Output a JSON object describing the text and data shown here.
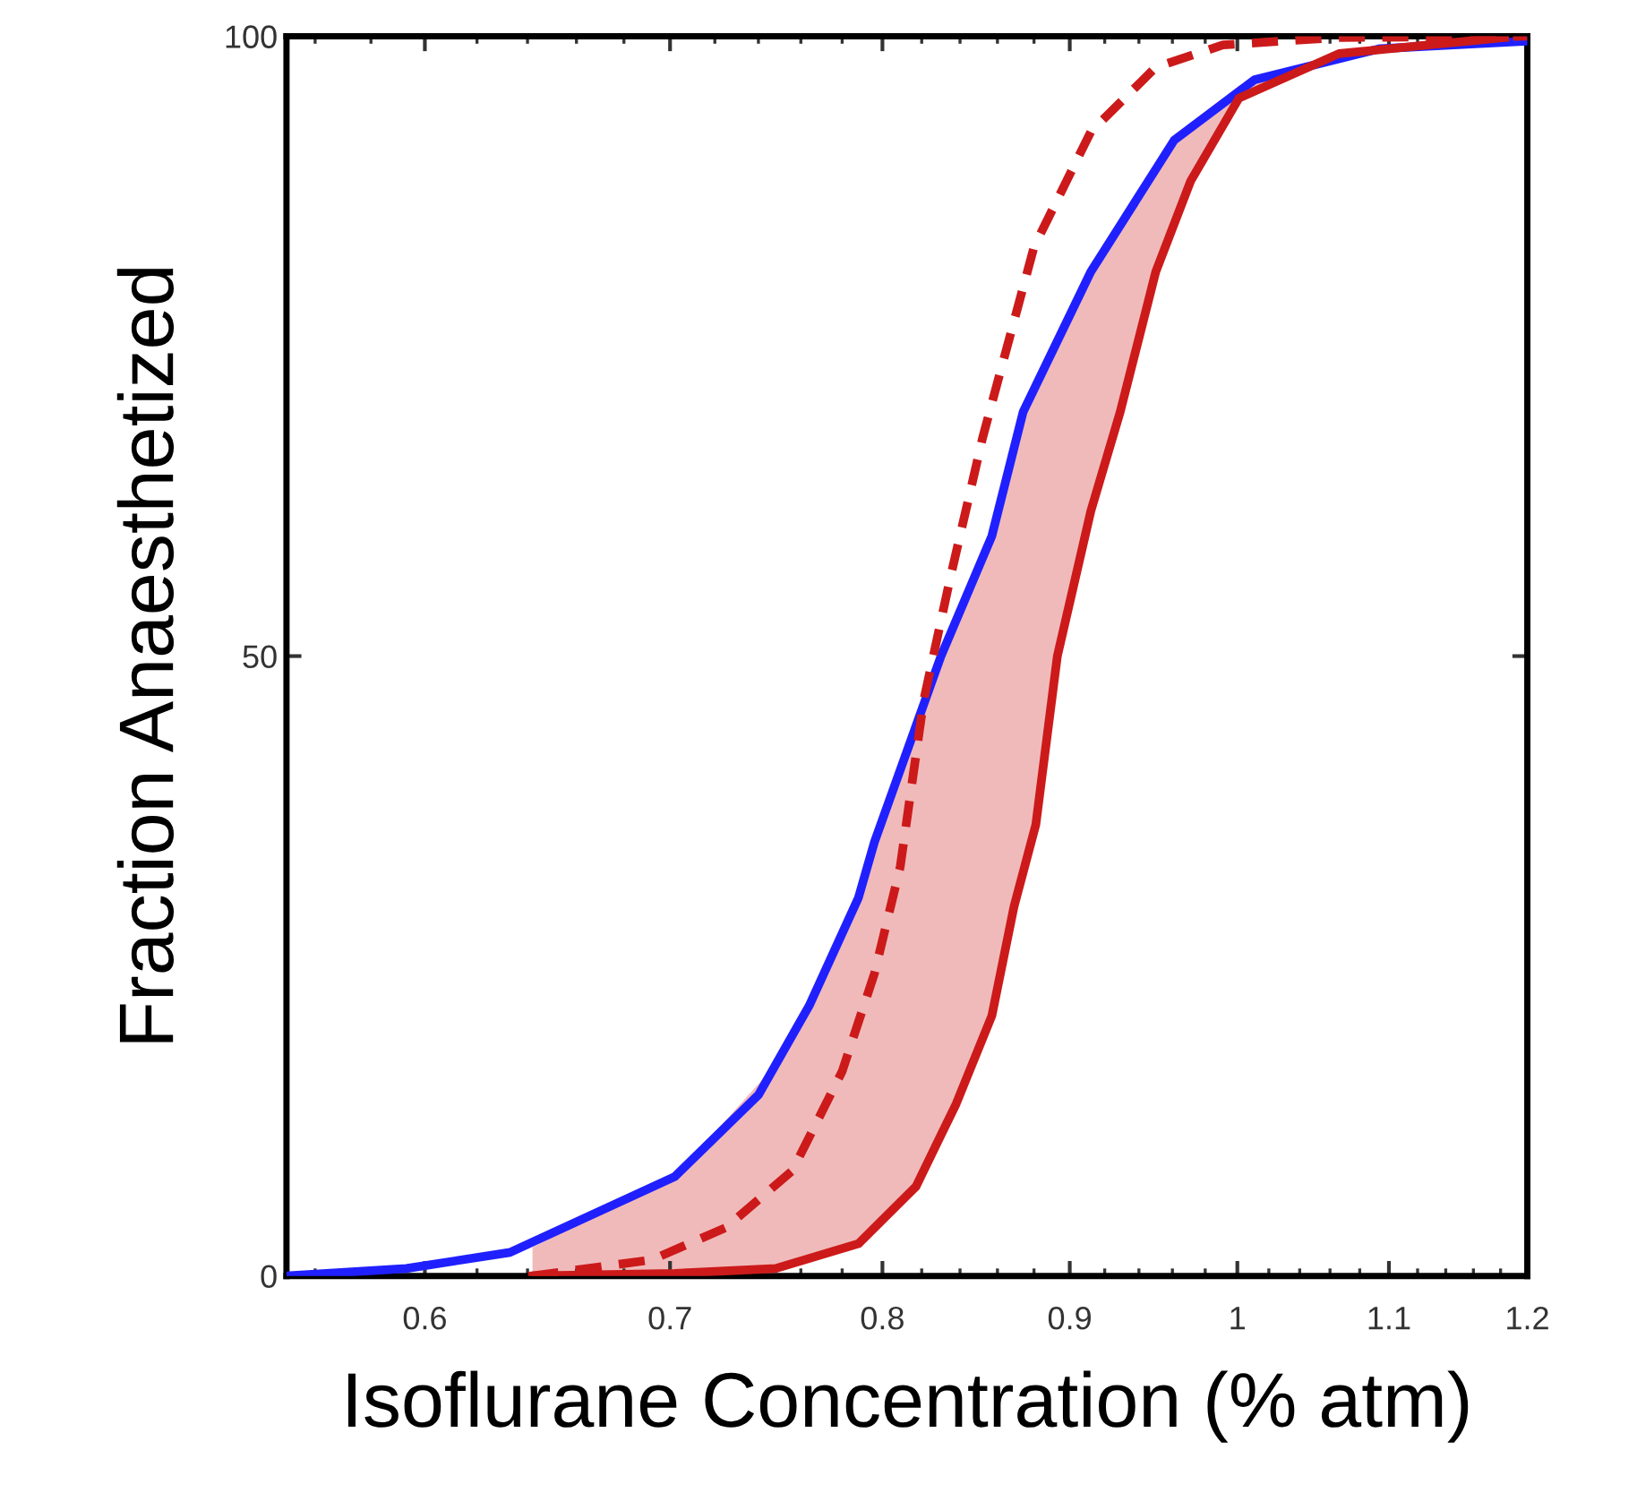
{
  "chart_data": {
    "type": "line",
    "xlabel": "Isoflurane Concentration (% atm)",
    "ylabel": "Fraction Anaesthetized",
    "log": "x",
    "xlim": [
      0.55,
      1.2
    ],
    "xticks": [
      0.6,
      0.7,
      0.8,
      0.9,
      1,
      1.1,
      1.2
    ],
    "ylim": [
      0,
      100
    ],
    "yticks": [
      0,
      50,
      100
    ],
    "series": [
      {
        "color": "#2020ff",
        "line_style": "solid",
        "x": [
          0.55,
          0.593,
          0.633,
          0.702,
          0.74,
          0.764,
          0.788,
          0.796,
          0.83,
          0.857,
          0.874,
          0.912,
          0.961,
          1.011,
          1.094,
          1.199
        ],
        "values": [
          0,
          0.6,
          1.9,
          8,
          14.6,
          21.8,
          30.5,
          35,
          50,
          59.7,
          69.7,
          81,
          91.6,
          96.5,
          99,
          99.6
        ]
      },
      {
        "color": "#cc1a1a",
        "line_style": "dashed",
        "x": [
          0.642,
          0.692,
          0.725,
          0.756,
          0.78,
          0.796,
          0.809,
          0.821,
          0.835,
          0.852,
          0.857,
          0.88,
          0.912,
          0.95,
          0.991,
          1.066,
          1.2
        ],
        "values": [
          0,
          1.3,
          3.9,
          8.5,
          16.5,
          24.4,
          33,
          46.4,
          56.4,
          67.6,
          70.4,
          83,
          92.3,
          97.5,
          99.3,
          99.9,
          100
        ]
      },
      {
        "color": "#cc1a1a",
        "line_style": "solid",
        "x": [
          0.642,
          0.702,
          0.748,
          0.788,
          0.817,
          0.838,
          0.857,
          0.869,
          0.881,
          0.893,
          0.912,
          0.929,
          0.95,
          0.971,
          1.001,
          1.066,
          1.183
        ],
        "values": [
          0,
          0.2,
          0.6,
          2.6,
          7.2,
          13.9,
          21,
          29.8,
          36.4,
          50,
          61.7,
          69.7,
          81,
          88.3,
          95,
          98.6,
          99.9
        ],
        "lower": [
          0,
          0.2,
          0.6,
          2.6,
          7.2,
          13.9,
          21,
          29.8,
          36.4,
          50,
          61.7,
          69.7,
          81,
          88.3,
          95,
          98.6,
          99.9
        ],
        "upper": [
          2.3,
          8,
          17,
          30.5,
          44,
          53,
          59.7,
          67,
          72.5,
          76,
          81,
          85,
          89,
          93,
          96,
          98.5,
          99.6
        ]
      }
    ]
  }
}
